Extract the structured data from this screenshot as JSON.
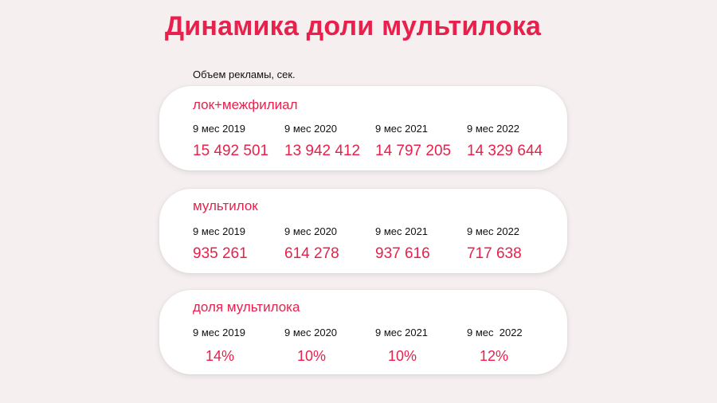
{
  "title": "Динамика доли мультилока",
  "subtitle": "Объем рекламы, сек.",
  "cards": [
    {
      "label": "лок+межфилиал",
      "periods": [
        "9 мес 2019",
        "9 мес 2020",
        "9 мес 2021",
        "9 мес 2022"
      ],
      "values": [
        "15 492 501",
        "13 942 412",
        "14 797 205",
        "14 329 644"
      ]
    },
    {
      "label": "мультилок",
      "periods": [
        "9 мес 2019",
        "9 мес 2020",
        "9 мес 2021",
        "9 мес 2022"
      ],
      "values": [
        "935 261",
        "614 278",
        "937 616",
        "717 638"
      ]
    },
    {
      "label": "доля мультилока",
      "periods": [
        "9 мес 2019",
        "9 мес 2020",
        "9 мес 2021",
        "9 мес  2022"
      ],
      "values": [
        "14%",
        "10%",
        "10%",
        "12%"
      ]
    }
  ],
  "colors": {
    "accent": "#e8204b",
    "background": "#f6eff0",
    "card": "#ffffff"
  }
}
